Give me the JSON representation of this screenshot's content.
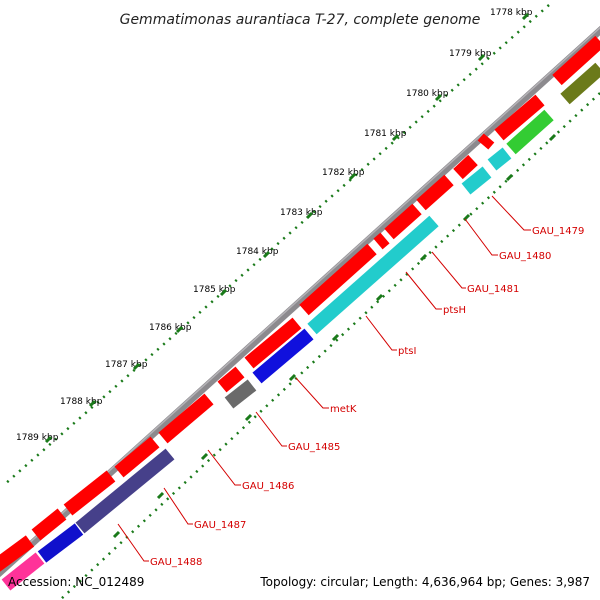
{
  "title": "Gemmatimonas aurantiaca T-27, complete genome",
  "kbp_labels": [
    "1778 kbp",
    "1779 kbp",
    "1780 kbp",
    "1781 kbp",
    "1782 kbp",
    "1783 kbp",
    "1784 kbp",
    "1785 kbp",
    "1786 kbp",
    "1787 kbp",
    "1788 kbp",
    "1789 kbp"
  ],
  "gene_labels": [
    "GAU_1479",
    "GAU_1480",
    "GAU_1481",
    "ptsH",
    "ptsI",
    "metK",
    "GAU_1485",
    "GAU_1486",
    "GAU_1487",
    "GAU_1488"
  ],
  "footer": {
    "accession": "Accession: NC_012489",
    "summary": "Topology: circular; Length: 4,636,964 bp; Genes: 3,987"
  },
  "colors": {
    "backbone": "#8c8a8e",
    "forward_gene": "#ff0000",
    "label_red": "#d40000",
    "tick_green": "#1a7a1a",
    "ptsI": "#22cccc",
    "metK": "#1010dd",
    "GAU_1485": "#6a6a6a",
    "GAU_1487": "#46408a",
    "GAU_1488": "#1010cc",
    "right_green": "#33cc33",
    "olive": "#6b7a1a",
    "magenta": "#ff3399"
  }
}
